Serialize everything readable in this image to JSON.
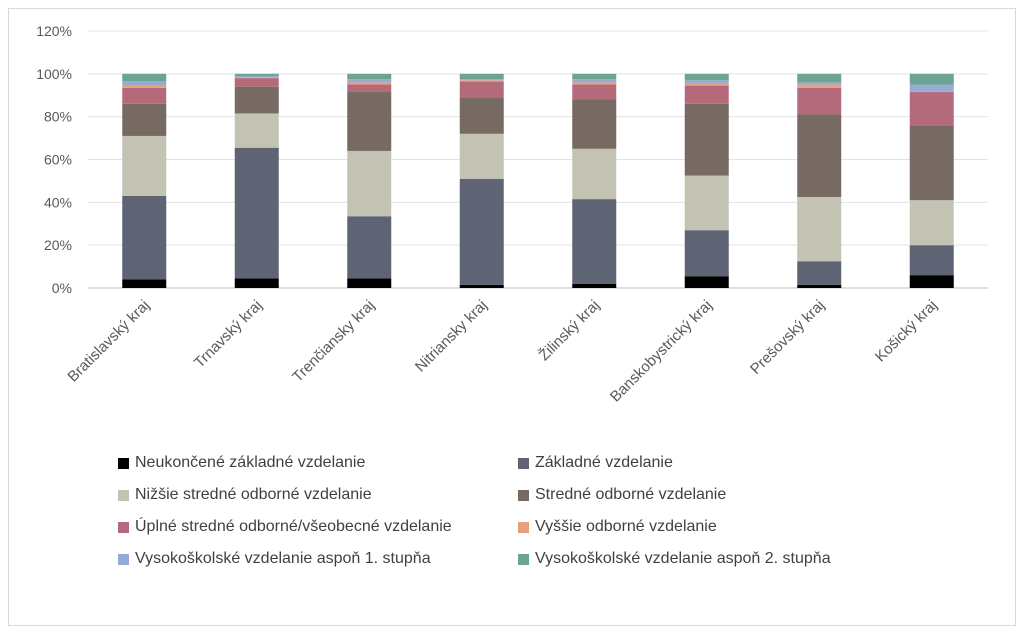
{
  "chart_data": {
    "type": "bar",
    "stacked": true,
    "percent": true,
    "title": "",
    "xlabel": "",
    "ylabel": "",
    "ylim": [
      0,
      120
    ],
    "yticks": [
      "0%",
      "20%",
      "40%",
      "60%",
      "80%",
      "100%",
      "120%"
    ],
    "grid": true,
    "legend_position": "bottom",
    "categories": [
      "Bratislavský kraj",
      "Trnavský kraj",
      "Trenčiansky kraj",
      "Nitriansky kraj",
      "Žilinský kraj",
      "Banskobystrický kraj",
      "Prešovský kraj",
      "Košický kraj"
    ],
    "series": [
      {
        "name": "Neukončené základné vzdelanie",
        "color": "#000000",
        "values": [
          4,
          4.5,
          4.5,
          1.5,
          2,
          5.5,
          1.5,
          6
        ]
      },
      {
        "name": "Základné vzdelanie",
        "color": "#5e6473",
        "values": [
          39,
          61,
          29,
          49.5,
          39.5,
          21.5,
          11,
          14
        ]
      },
      {
        "name": "Nižšie stredné odborné vzdelanie",
        "color": "#c3c3b4",
        "values": [
          28,
          16,
          30.5,
          21,
          23.5,
          25.5,
          30,
          21
        ]
      },
      {
        "name": "Stredné odborné vzdelanie",
        "color": "#766a62",
        "values": [
          15,
          12.5,
          27.5,
          17,
          23,
          33.5,
          38.5,
          35
        ]
      },
      {
        "name": "Úplné stredné odborné/všeobecné vzdelanie",
        "color": "#b56a7c",
        "values": [
          7.5,
          4,
          3.5,
          7.5,
          7,
          8.5,
          12.5,
          15.5
        ]
      },
      {
        "name": "Vyššie odborné vzdelanie",
        "color": "#e5a07e",
        "values": [
          1,
          0.5,
          1,
          0.5,
          1,
          1,
          1.5,
          0.5
        ]
      },
      {
        "name": "Vysokoškolské vzdelanie aspoň 1. stupňa",
        "color": "#93acd0",
        "values": [
          2,
          0.5,
          1.5,
          0.5,
          1.5,
          1.5,
          1,
          3
        ]
      },
      {
        "name": "Vysokoškolské vzdelanie aspoň 2. stupňa",
        "color": "#6ca394",
        "values": [
          3.5,
          1,
          2.5,
          2.5,
          2.5,
          3,
          4,
          5
        ]
      }
    ]
  }
}
